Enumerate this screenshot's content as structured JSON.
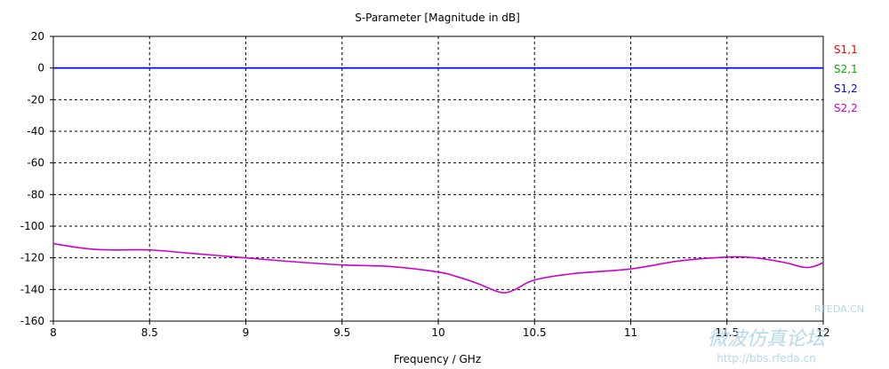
{
  "chart_data": {
    "type": "line",
    "title": "S-Parameter [Magnitude in dB]",
    "xlabel": "Frequency / GHz",
    "ylabel": "",
    "xlim": [
      8,
      12
    ],
    "ylim": [
      -160,
      20
    ],
    "x_ticks": [
      8,
      8.5,
      9,
      9.5,
      10,
      10.5,
      11,
      11.5,
      12
    ],
    "x_tick_labels": [
      "8",
      "8.5",
      "9",
      "9.5",
      "10",
      "10.5",
      "11",
      "11.5",
      "12"
    ],
    "y_ticks": [
      20,
      0,
      -20,
      -40,
      -60,
      -80,
      -100,
      -120,
      -140,
      -160
    ],
    "y_tick_labels": [
      "20",
      "0",
      "-20",
      "-40",
      "-60",
      "-80",
      "-100",
      "-120",
      "-140",
      "-160"
    ],
    "grid": true,
    "grid_style": "dashed",
    "legend_position": "right-top",
    "series": [
      {
        "name": "S1,1",
        "color": "#ff0000",
        "x": [
          8,
          12
        ],
        "y": [
          0,
          0
        ]
      },
      {
        "name": "S2,1",
        "color": "#00b000",
        "x": [
          8,
          12
        ],
        "y": [
          0,
          0
        ]
      },
      {
        "name": "S1,2",
        "color": "#0000ff",
        "x": [
          8,
          12
        ],
        "y": [
          0,
          0
        ]
      },
      {
        "name": "S2,2",
        "color": "#cc00cc",
        "x": [
          8.0,
          8.1,
          8.2,
          8.3,
          8.5,
          8.7,
          9.0,
          9.25,
          9.5,
          9.75,
          10.0,
          10.1,
          10.2,
          10.3,
          10.35,
          10.4,
          10.5,
          10.7,
          11.0,
          11.25,
          11.5,
          11.65,
          11.8,
          11.9,
          11.95,
          12.0
        ],
        "y": [
          -111,
          -113,
          -114.5,
          -115,
          -115,
          -117,
          -120,
          -122.5,
          -124.5,
          -125.5,
          -129,
          -132,
          -136,
          -141,
          -142,
          -140,
          -134,
          -130,
          -127,
          -122,
          -119.5,
          -120,
          -123,
          -126,
          -125.5,
          -123
        ]
      }
    ]
  },
  "watermark": {
    "line1": "微波仿真论坛",
    "line2": "http://bbs.rfeda.cn",
    "site": "RFEDA.CN"
  }
}
